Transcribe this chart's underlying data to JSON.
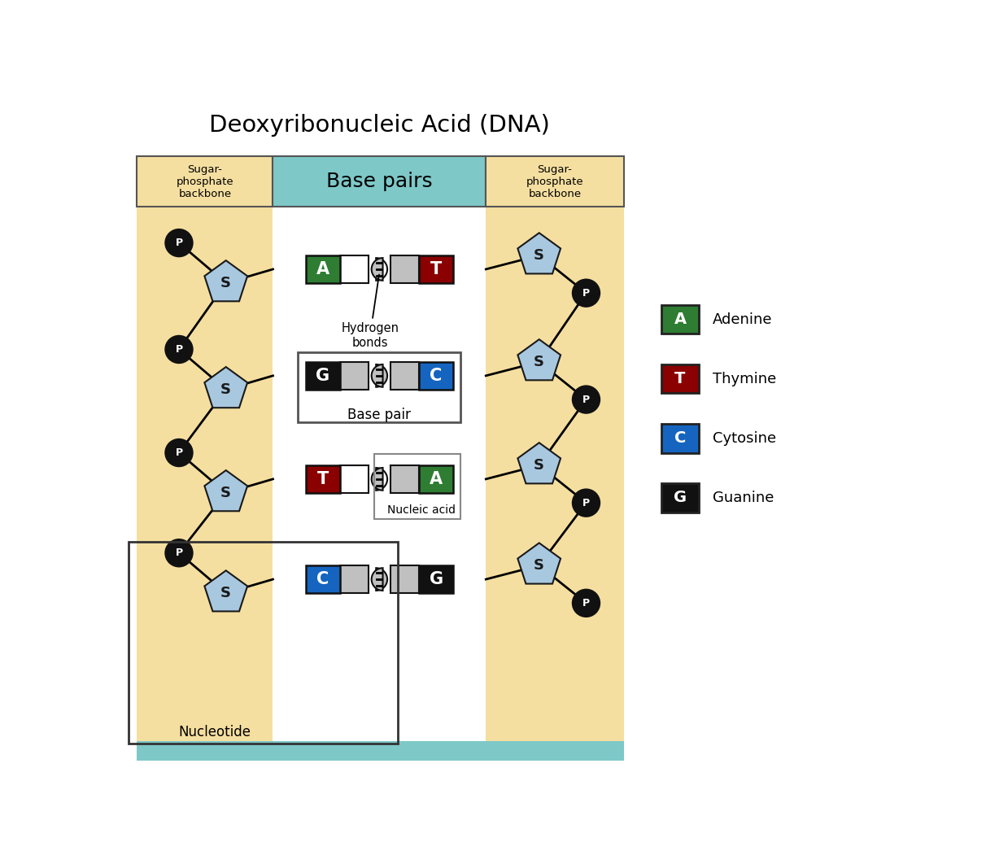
{
  "title": "Deoxyribonucleic Acid (DNA)",
  "title_fontsize": 21,
  "bg_color": "#ffffff",
  "backbone_color": "#f5dfa0",
  "base_pairs_header_color": "#7ec8c8",
  "sugar_header_color": "#f5dfa0",
  "header_border_color": "#555555",
  "pentagon_fill": "#a8c8e0",
  "pentagon_stroke": "#1a1a1a",
  "phosphate_fill": "#111111",
  "phosphate_text": "#ffffff",
  "adenine_color": "#2e7d32",
  "thymine_color": "#8b0000",
  "cytosine_color": "#1565c0",
  "guanine_color": "#111111",
  "rows": [
    {
      "left": "A",
      "left_color": "#2e7d32",
      "right": "T",
      "right_color": "#8b0000",
      "left_conn": "white",
      "right_conn": "#c0c0c0"
    },
    {
      "left": "G",
      "left_color": "#111111",
      "right": "C",
      "right_color": "#1565c0",
      "left_conn": "#c0c0c0",
      "right_conn": "#c0c0c0"
    },
    {
      "left": "T",
      "left_color": "#8b0000",
      "right": "A",
      "right_color": "#2e7d32",
      "left_conn": "white",
      "right_conn": "#c0c0c0"
    },
    {
      "left": "C",
      "left_color": "#1565c0",
      "right": "G",
      "right_color": "#111111",
      "left_conn": "#c0c0c0",
      "right_conn": "#c0c0c0"
    }
  ],
  "legend_items": [
    {
      "letter": "A",
      "label": "Adenine",
      "color": "#2e7d32"
    },
    {
      "letter": "T",
      "label": "Thymine",
      "color": "#8b0000"
    },
    {
      "letter": "C",
      "label": "Cytosine",
      "color": "#1565c0"
    },
    {
      "letter": "G",
      "label": "Guanine",
      "color": "#111111"
    }
  ]
}
